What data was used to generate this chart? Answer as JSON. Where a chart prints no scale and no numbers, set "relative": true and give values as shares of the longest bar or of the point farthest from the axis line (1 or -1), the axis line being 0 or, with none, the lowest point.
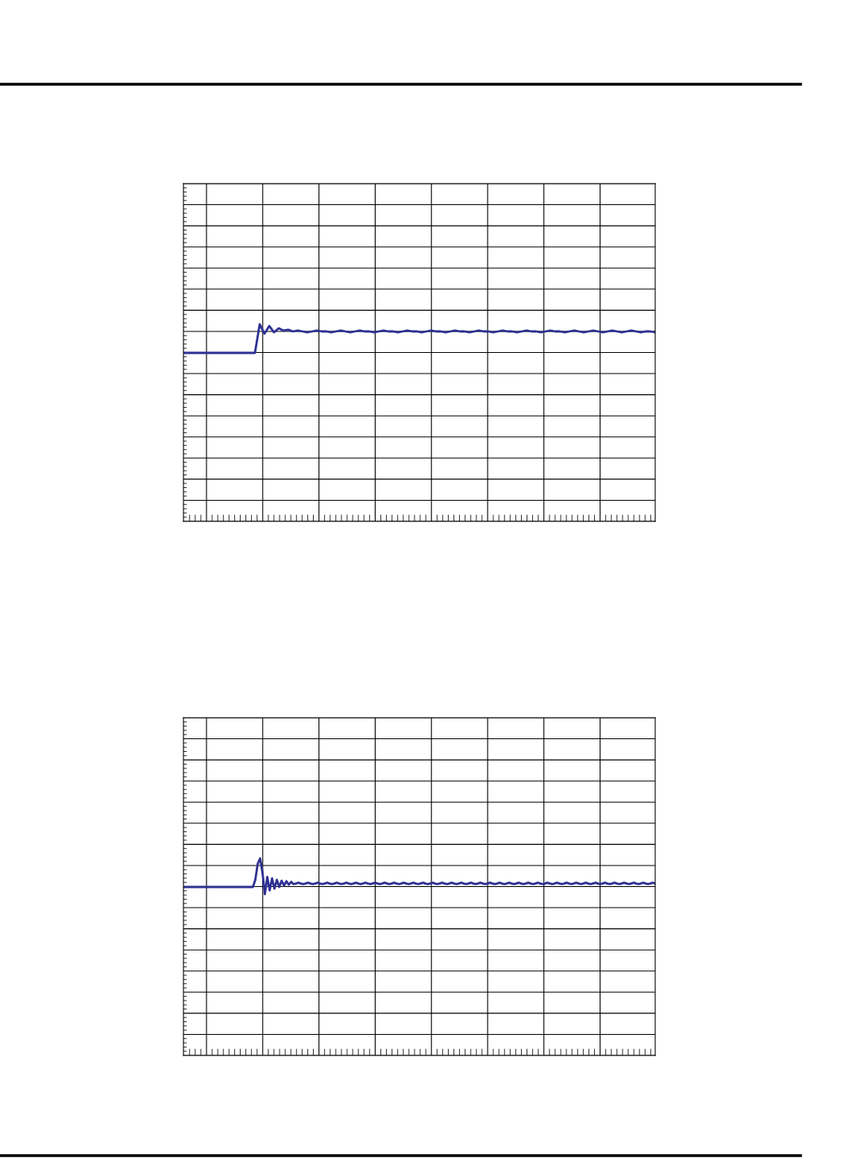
{
  "chart_data": [
    {
      "type": "line",
      "relative": true,
      "grid": true,
      "tick_labels": false,
      "categories": [
        null,
        null,
        null,
        null,
        null,
        null,
        null,
        null,
        null,
        null,
        null,
        null,
        null,
        null,
        null,
        null,
        null,
        null,
        null,
        null,
        null,
        null,
        null,
        null,
        null,
        null,
        null,
        null,
        null,
        null,
        null,
        null,
        null,
        null,
        null,
        null,
        null,
        null,
        null,
        null,
        null,
        null,
        null,
        null,
        null,
        null,
        null,
        null,
        null,
        null,
        null,
        null,
        null,
        null,
        null,
        null,
        null,
        null,
        null,
        null,
        null,
        null,
        null,
        null,
        null,
        null,
        null,
        null,
        null,
        null,
        null,
        null,
        null,
        null,
        null,
        null,
        null,
        null,
        null,
        null,
        null,
        null,
        null,
        null,
        null,
        null,
        null,
        null,
        null,
        null,
        null,
        null,
        null,
        null,
        null,
        null,
        null,
        null,
        null,
        null
      ],
      "series": [
        {
          "color": "#2e3192",
          "values": [
            0,
            0,
            0,
            0,
            0,
            0,
            0,
            0,
            0,
            0,
            0,
            0,
            0,
            0,
            0,
            0,
            1,
            0.67,
            0.94,
            0.72,
            0.86,
            0.78,
            0.81,
            0.75,
            0.78,
            0.75,
            0.72,
            0.75,
            0.78,
            0.75,
            0.75,
            0.72,
            0.75,
            0.78,
            0.75,
            0.72,
            0.75,
            0.78,
            0.75,
            0.75,
            0.72,
            0.75,
            0.78,
            0.75,
            0.75,
            0.72,
            0.75,
            0.78,
            0.75,
            0.75,
            0.72,
            0.75,
            0.78,
            0.75,
            0.75,
            0.72,
            0.75,
            0.78,
            0.75,
            0.75,
            0.72,
            0.75,
            0.78,
            0.75,
            0.75,
            0.72,
            0.75,
            0.78,
            0.75,
            0.75,
            0.72,
            0.75,
            0.78,
            0.75,
            0.75,
            0.72,
            0.75,
            0.78,
            0.75,
            0.75,
            0.72,
            0.75,
            0.78,
            0.75,
            0.72,
            0.75,
            0.78,
            0.75,
            0.72,
            0.75,
            0.78,
            0.75,
            0.72,
            0.75,
            0.78,
            0.75,
            0.72,
            0.75,
            0.75,
            0.72
          ]
        }
      ]
    },
    {
      "type": "line",
      "relative": true,
      "grid": true,
      "tick_labels": false,
      "categories": [
        null,
        null,
        null,
        null,
        null,
        null,
        null,
        null,
        null,
        null,
        null,
        null,
        null,
        null,
        null,
        null,
        null,
        null,
        null,
        null,
        null,
        null,
        null,
        null,
        null,
        null,
        null,
        null,
        null,
        null,
        null,
        null,
        null,
        null,
        null,
        null,
        null,
        null,
        null,
        null,
        null,
        null,
        null,
        null,
        null,
        null,
        null,
        null,
        null,
        null,
        null,
        null,
        null,
        null,
        null,
        null,
        null,
        null,
        null,
        null,
        null,
        null,
        null,
        null,
        null,
        null,
        null,
        null,
        null,
        null,
        null,
        null,
        null,
        null,
        null,
        null,
        null,
        null,
        null,
        null,
        null,
        null,
        null,
        null,
        null,
        null,
        null,
        null,
        null,
        null,
        null,
        null,
        null,
        null,
        null,
        null,
        null,
        null,
        null,
        null,
        null,
        null,
        null,
        null,
        null,
        null,
        null,
        null,
        null,
        null,
        null,
        null,
        null,
        null,
        null,
        null,
        null,
        null,
        null,
        null,
        null,
        null,
        null,
        null,
        null,
        null,
        null,
        null,
        null,
        null,
        null,
        null,
        null,
        null,
        null,
        null,
        null,
        null,
        null,
        null,
        null,
        null,
        null,
        null,
        null,
        null,
        null,
        null,
        null,
        null,
        null,
        null,
        null,
        null,
        null,
        null,
        null,
        null,
        null,
        null,
        null,
        null,
        null,
        null,
        null,
        null,
        null,
        null,
        null,
        null,
        null,
        null,
        null,
        null,
        null,
        null,
        null,
        null,
        null,
        null,
        null,
        null,
        null,
        null,
        null,
        null,
        null,
        null,
        null,
        null,
        null,
        null,
        null,
        null,
        null,
        null,
        null,
        null
      ],
      "series": [
        {
          "color": "#2e3192",
          "values": [
            0,
            0,
            0,
            0,
            0,
            0,
            0,
            0,
            0,
            0,
            0,
            0,
            0,
            0,
            0,
            0,
            0,
            0,
            0,
            0,
            0,
            0,
            0,
            0,
            0,
            0,
            0,
            0,
            0,
            0,
            0.25,
            0.81,
            1,
            0.5,
            -0.25,
            0.35,
            -0.12,
            0.3,
            -0.06,
            0.25,
            0,
            0.22,
            0.05,
            0.2,
            0.08,
            0.18,
            0.1,
            0.12,
            0.15,
            0.12,
            0.1,
            0.12,
            0.15,
            0.12,
            0.1,
            0.12,
            0.15,
            0.12,
            0.1,
            0.12,
            0.15,
            0.12,
            0.1,
            0.12,
            0.15,
            0.12,
            0.1,
            0.12,
            0.15,
            0.12,
            0.1,
            0.12,
            0.15,
            0.12,
            0.1,
            0.12,
            0.15,
            0.12,
            0.1,
            0.12,
            0.15,
            0.12,
            0.1,
            0.12,
            0.15,
            0.12,
            0.1,
            0.12,
            0.15,
            0.12,
            0.1,
            0.12,
            0.15,
            0.12,
            0.1,
            0.12,
            0.15,
            0.12,
            0.1,
            0.12,
            0.15,
            0.12,
            0.1,
            0.12,
            0.15,
            0.12,
            0.1,
            0.12,
            0.15,
            0.12,
            0.1,
            0.12,
            0.15,
            0.12,
            0.1,
            0.12,
            0.15,
            0.12,
            0.1,
            0.12,
            0.15,
            0.12,
            0.1,
            0.12,
            0.15,
            0.12,
            0.1,
            0.12,
            0.15,
            0.12,
            0.1,
            0.12,
            0.15,
            0.12,
            0.1,
            0.12,
            0.15,
            0.12,
            0.1,
            0.12,
            0.15,
            0.12,
            0.1,
            0.12,
            0.15,
            0.12,
            0.1,
            0.12,
            0.15,
            0.12,
            0.1,
            0.12,
            0.15,
            0.12,
            0.1,
            0.12,
            0.15,
            0.12,
            0.1,
            0.12,
            0.15,
            0.12,
            0.1,
            0.12,
            0.15,
            0.12,
            0.1,
            0.12,
            0.15,
            0.12,
            0.1,
            0.12,
            0.15,
            0.12,
            0.1,
            0.12,
            0.15,
            0.12,
            0.1,
            0.12,
            0.15,
            0.12,
            0.1,
            0.12,
            0.15,
            0.12,
            0.1,
            0.12,
            0.15,
            0.12,
            0.1,
            0.12,
            0.15,
            0.12,
            0.1,
            0.12,
            0.15,
            0.12
          ]
        }
      ]
    }
  ]
}
